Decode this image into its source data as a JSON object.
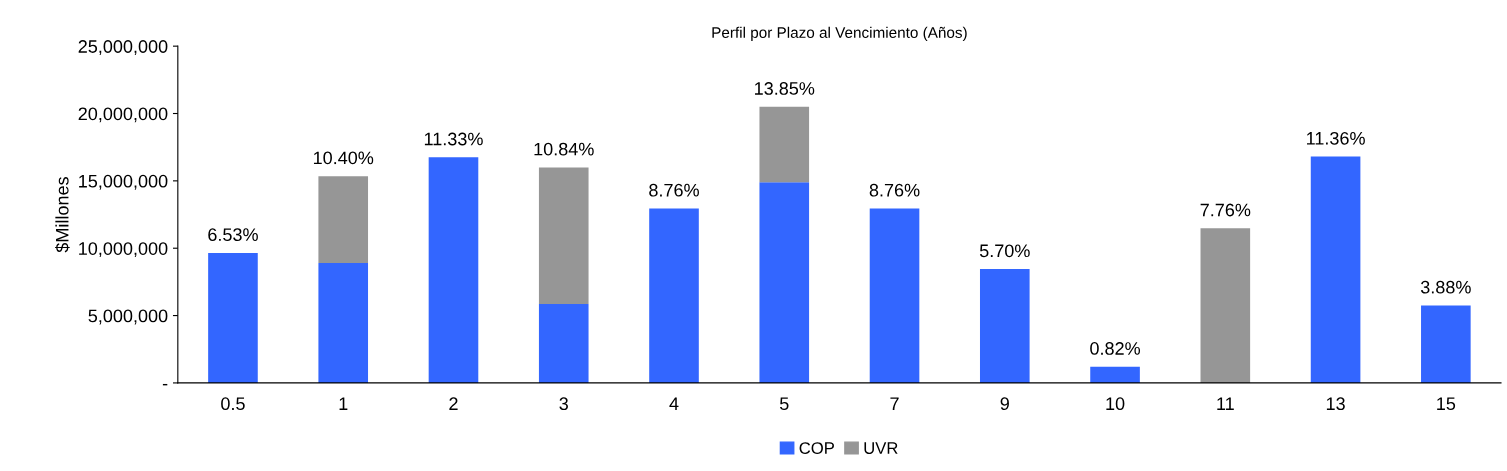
{
  "chart_data": {
    "type": "bar",
    "title": "Perfil por Plazo al Vencimiento (Años)",
    "ylabel": "$Millones",
    "stacked": true,
    "categories": [
      "0.5",
      "1",
      "2",
      "3",
      "4",
      "5",
      "7",
      "9",
      "10",
      "11",
      "13",
      "15"
    ],
    "series": [
      {
        "name": "COP",
        "color": "#3366ff",
        "values": [
          9650000,
          8900000,
          16750000,
          5850000,
          12950000,
          14900000,
          12950000,
          8450000,
          1200000,
          null,
          16800000,
          5750000
        ]
      },
      {
        "name": "UVR",
        "color": "#969696",
        "values": [
          null,
          6450000,
          null,
          10150000,
          null,
          5600000,
          null,
          null,
          null,
          11480000,
          null,
          null
        ]
      }
    ],
    "annotations": [
      {
        "text": "6.53%",
        "x": "0.5",
        "y": 9650000
      },
      {
        "text": "10.40%",
        "x": "1",
        "y": 15350000
      },
      {
        "text": "11.33%",
        "x": "2",
        "y": 16750000
      },
      {
        "text": "10.84%",
        "x": "3",
        "y": 16000000
      },
      {
        "text": "8.76%",
        "x": "4",
        "y": 12950000
      },
      {
        "text": "13.85%",
        "x": "5",
        "y": 20500000
      },
      {
        "text": "8.76%",
        "x": "7",
        "y": 12950000
      },
      {
        "text": "5.70%",
        "x": "9",
        "y": 8450000
      },
      {
        "text": "0.82%",
        "x": "10",
        "y": 1200000
      },
      {
        "text": "7.76%",
        "x": "11",
        "y": 11480000
      },
      {
        "text": "11.36%",
        "x": "13",
        "y": 16800000
      },
      {
        "text": "3.88%",
        "x": "15",
        "y": 5750000
      }
    ],
    "ylim": [
      0,
      25000000
    ],
    "yticks": [
      {
        "value": 0,
        "label": "-"
      },
      {
        "value": 5000000,
        "label": "5,000,000"
      },
      {
        "value": 10000000,
        "label": "10,000,000"
      },
      {
        "value": 15000000,
        "label": "15,000,000"
      },
      {
        "value": 20000000,
        "label": "20,000,000"
      },
      {
        "value": 25000000,
        "label": "25,000,000"
      }
    ],
    "grid": false,
    "legend": "bottom"
  }
}
